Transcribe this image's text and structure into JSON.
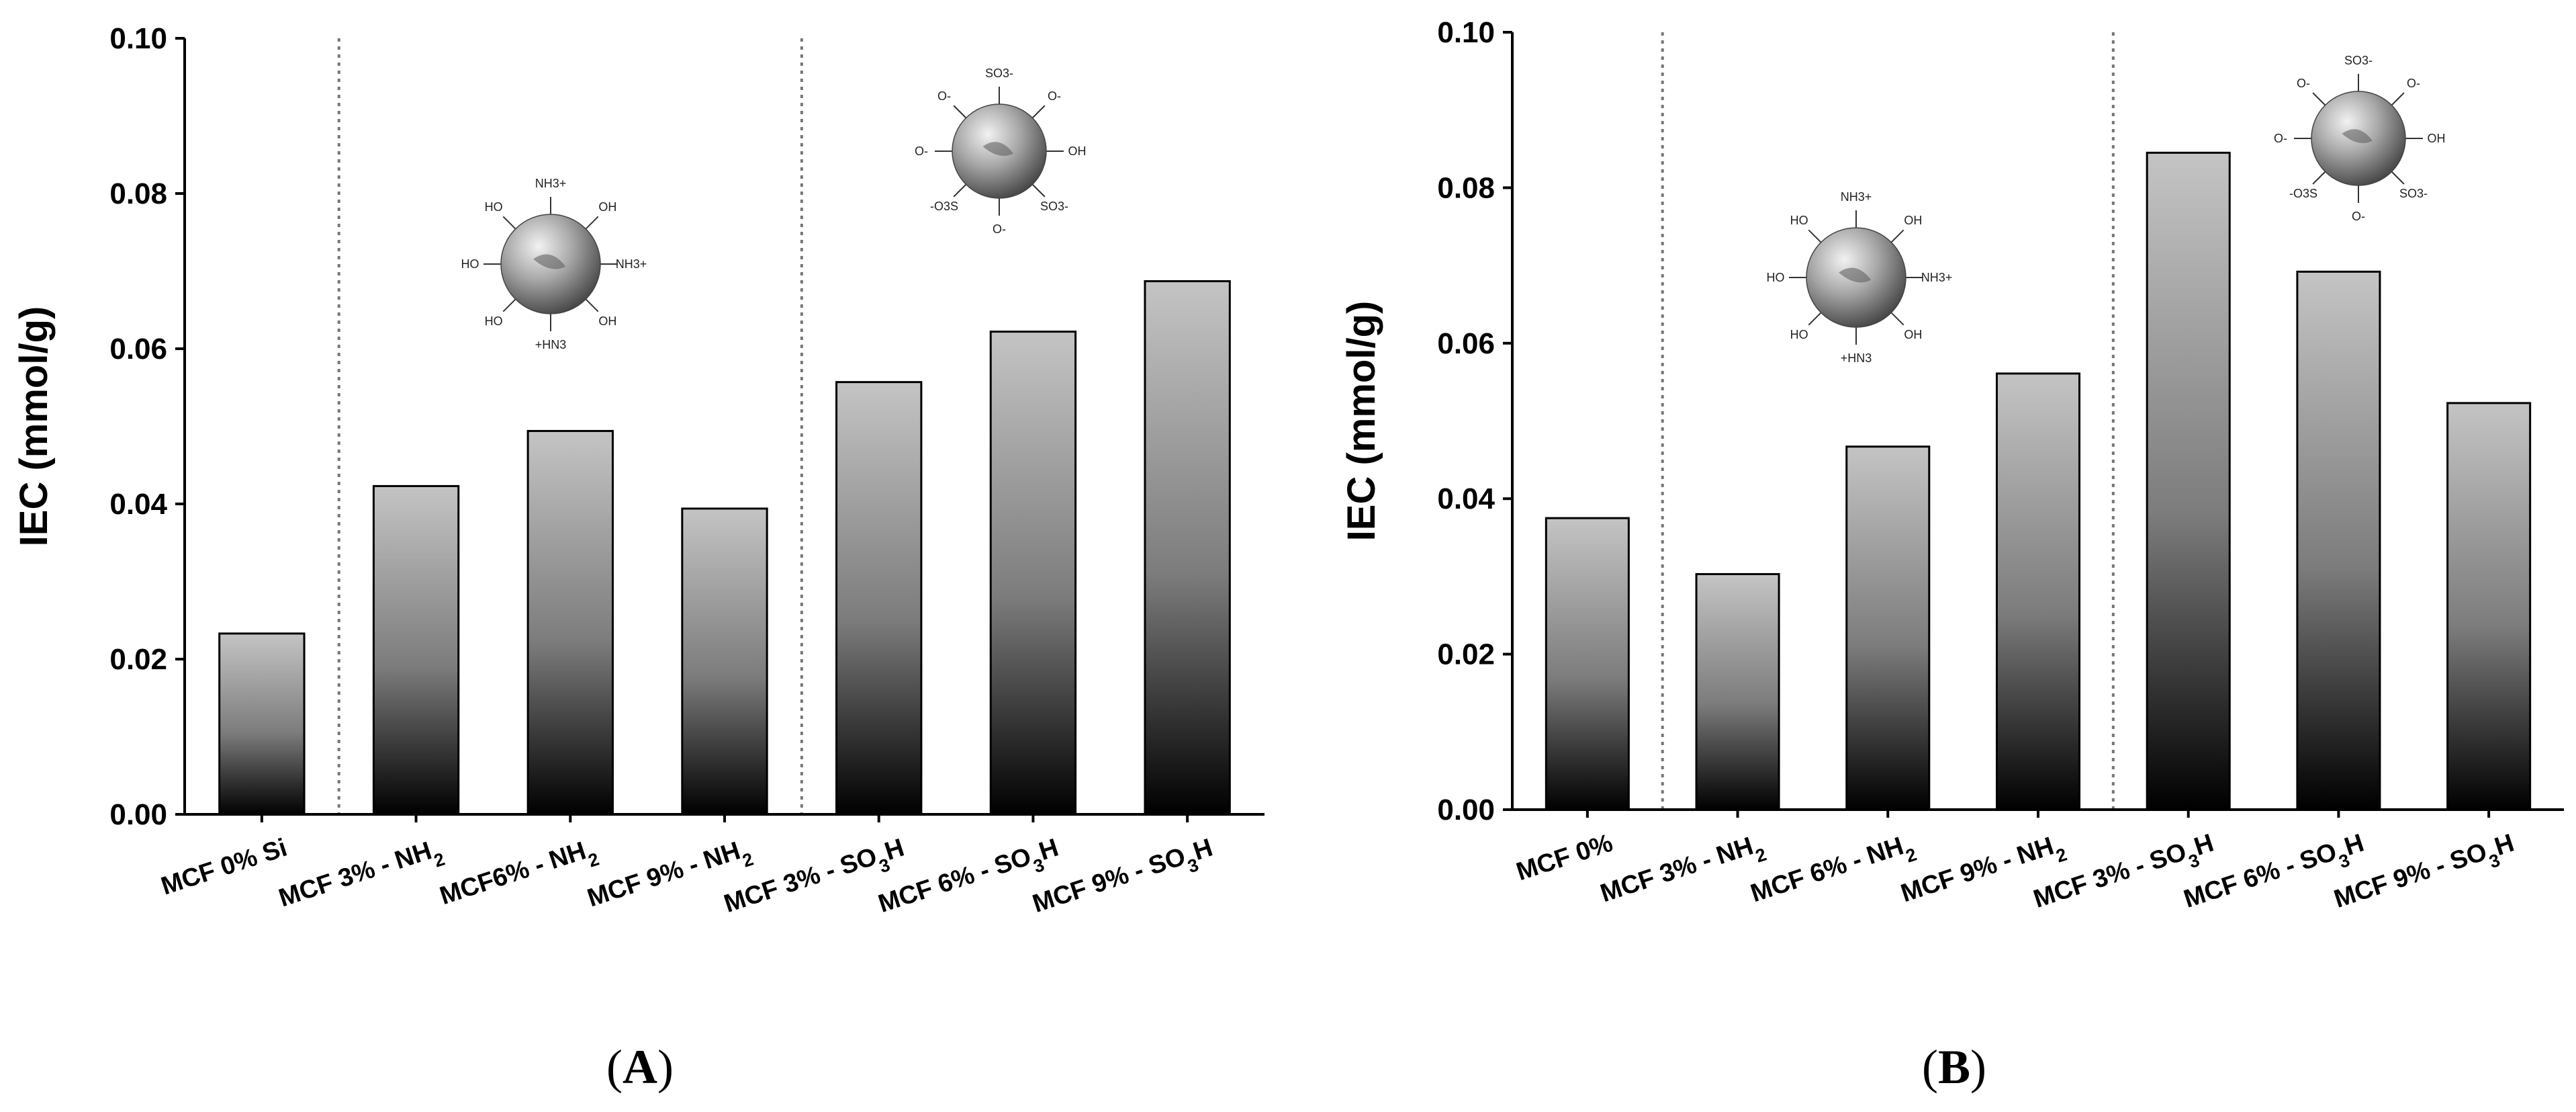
{
  "chart_data": [
    {
      "type": "bar",
      "panel_label": "A",
      "title": "",
      "xlabel": "",
      "ylabel": "IEC (mmol/g)",
      "ylim": [
        0,
        0.1
      ],
      "yticks": [
        "0.00",
        "0.02",
        "0.04",
        "0.06",
        "0.08",
        "0.10"
      ],
      "categories": [
        {
          "text": "MCF 0% Si",
          "sub": "",
          "tail": ""
        },
        {
          "text": "MCF 3% - NH",
          "sub": "2",
          "tail": ""
        },
        {
          "text": "MCF6% - NH",
          "sub": "2",
          "tail": ""
        },
        {
          "text": "MCF 9% - NH",
          "sub": "2",
          "tail": ""
        },
        {
          "text": "MCF 3% - SO",
          "sub": "3",
          "tail": "H"
        },
        {
          "text": "MCF 6% - SO",
          "sub": "3",
          "tail": "H"
        },
        {
          "text": "MCF 9% - SO",
          "sub": "3",
          "tail": "H"
        }
      ],
      "values": [
        0.0233,
        0.0423,
        0.0494,
        0.0394,
        0.0557,
        0.0622,
        0.0687
      ],
      "group_separators_after": [
        0,
        3
      ],
      "insets": [
        {
          "type": "amine-particle",
          "labels": [
            "NH3+",
            "OH",
            "NH3+",
            "OH",
            "+HN3",
            "HO",
            "HO",
            "HO"
          ]
        },
        {
          "type": "sulfonate-particle",
          "labels": [
            "SO3-",
            "O-",
            "OH",
            "SO3-",
            "O-",
            "-O3S",
            "O-",
            "O-"
          ]
        }
      ]
    },
    {
      "type": "bar",
      "panel_label": "B",
      "title": "",
      "xlabel": "",
      "ylabel": "IEC (mmol/g)",
      "ylim": [
        0,
        0.1
      ],
      "yticks": [
        "0.00",
        "0.02",
        "0.04",
        "0.06",
        "0.08",
        "0.10"
      ],
      "categories": [
        {
          "text": "MCF 0%",
          "sub": "",
          "tail": ""
        },
        {
          "text": "MCF 3% - NH",
          "sub": "2",
          "tail": ""
        },
        {
          "text": "MCF 6% - NH",
          "sub": "2",
          "tail": ""
        },
        {
          "text": "MCF 9% - NH",
          "sub": "2",
          "tail": ""
        },
        {
          "text": "MCF 3% - SO",
          "sub": "3",
          "tail": "H"
        },
        {
          "text": "MCF 6% - SO",
          "sub": "3",
          "tail": "H"
        },
        {
          "text": "MCF 9% - SO",
          "sub": "3",
          "tail": "H"
        }
      ],
      "values": [
        0.0375,
        0.0303,
        0.0467,
        0.0561,
        0.0845,
        0.0692,
        0.0523
      ],
      "group_separators_after": [
        0,
        3
      ],
      "insets": [
        {
          "type": "amine-particle",
          "labels": [
            "NH3+",
            "OH",
            "NH3+",
            "OH",
            "+HN3",
            "HO",
            "HO",
            "HO"
          ]
        },
        {
          "type": "sulfonate-particle",
          "labels": [
            "SO3-",
            "O-",
            "OH",
            "SO3-",
            "O-",
            "-O3S",
            "O-",
            "O-"
          ]
        }
      ]
    }
  ]
}
